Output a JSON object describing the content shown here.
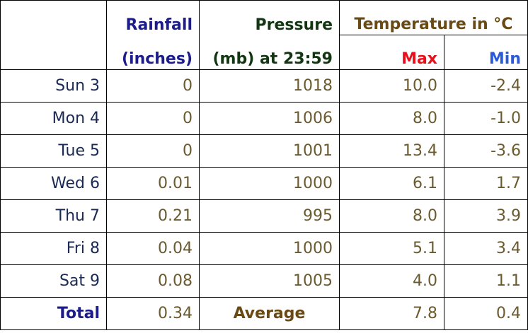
{
  "header": {
    "rainfall_line1": "Rainfall",
    "rainfall_line2": "(inches)",
    "pressure_line1": "Pressure",
    "pressure_line2": "(mb) at 23:59",
    "temperature_title": "Temperature in °C",
    "max_label": "Max",
    "min_label": "Min"
  },
  "rows": [
    {
      "day": "Sun 3",
      "rain": "0",
      "pressure": "1018",
      "max": "10.0",
      "min": "-2.4"
    },
    {
      "day": "Mon 4",
      "rain": "0",
      "pressure": "1006",
      "max": "8.0",
      "min": "-1.0"
    },
    {
      "day": "Tue 5",
      "rain": "0",
      "pressure": "1001",
      "max": "13.4",
      "min": "-3.6"
    },
    {
      "day": "Wed 6",
      "rain": "0.01",
      "pressure": "1000",
      "max": "6.1",
      "min": "1.7"
    },
    {
      "day": "Thu 7",
      "rain": "0.21",
      "pressure": "995",
      "max": "8.0",
      "min": "3.9"
    },
    {
      "day": "Fri 8",
      "rain": "0.04",
      "pressure": "1000",
      "max": "5.1",
      "min": "3.4"
    },
    {
      "day": "Sat 9",
      "rain": "0.08",
      "pressure": "1005",
      "max": "4.0",
      "min": "1.1"
    }
  ],
  "footer": {
    "total_label": "Total",
    "rain_total": "0.34",
    "average_label": "Average",
    "max_avg": "7.8",
    "min_avg": "0.4"
  },
  "colors": {
    "rainfall_header": "#1c1c8a",
    "pressure_header": "#123512",
    "temperature_header": "#6a4a14",
    "max_header": "#e8101a",
    "min_header": "#2a5ad8",
    "values": "#6b5a2e",
    "day_labels": "#1a2a55"
  }
}
